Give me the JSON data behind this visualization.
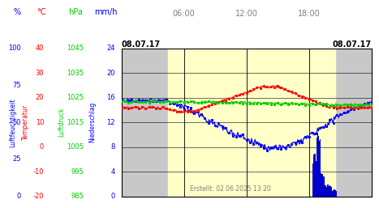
{
  "title_left": "08.07.17",
  "title_right": "08.07.17",
  "created": "Erstellt: 02.06.2025 13:20",
  "x_ticks": [
    6,
    12,
    18
  ],
  "x_tick_labels": [
    "06:00",
    "12:00",
    "18:00"
  ],
  "x_range": [
    0,
    24
  ],
  "bg_day_color": "#ffffc8",
  "bg_night_color": "#d0d0d0",
  "pct_vals": [
    0,
    25,
    50,
    75,
    100
  ],
  "temp_vals": [
    -20,
    -10,
    0,
    10,
    20,
    30,
    40
  ],
  "hpa_vals": [
    985,
    995,
    1005,
    1015,
    1025,
    1035,
    1045
  ],
  "mmh_vals": [
    0,
    4,
    8,
    12,
    16,
    20,
    24
  ],
  "ylabel_humidity": "Luftfeuchtigkeit",
  "ylabel_temp": "Temperatur",
  "ylabel_luftdruck": "Luftdruck",
  "ylabel_niederschlag": "Niederschlag",
  "unit_pct": "%",
  "unit_temp": "°C",
  "unit_hpa": "hPa",
  "unit_mmh": "mm/h",
  "color_humidity": "#0000ff",
  "color_temp": "#ff0000",
  "color_pressure": "#00cc00",
  "color_rain": "#0000cc",
  "color_grid": "#000000",
  "color_night": "#c8c8c8",
  "color_day": "#ffffc8"
}
